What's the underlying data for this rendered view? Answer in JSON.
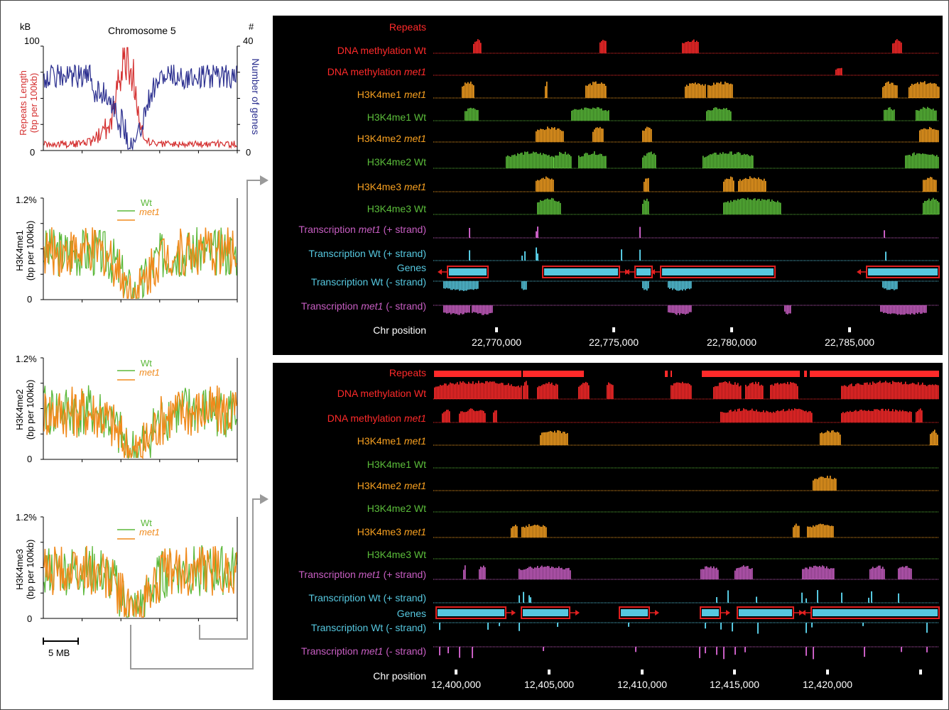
{
  "left": {
    "chart1": {
      "title": "Chromosome 5",
      "left_unit": "kB",
      "right_unit": "#",
      "left_ticks": [
        "100",
        "0"
      ],
      "right_ticks": [
        "40",
        "0"
      ],
      "ylabel_left_1": "Repeats Length",
      "ylabel_left_2": "(bp per 100kb)",
      "ylabel_right": "Number of genes",
      "colors": {
        "repeats": "#d42f2f",
        "genes": "#2b2f8f"
      }
    },
    "chart2": {
      "top": "1.2%",
      "bottom": "0",
      "ylabel_1": "H3K4me1",
      "ylabel_2": "(bp per 100kb)",
      "legend": [
        "Wt",
        "met1"
      ]
    },
    "chart3": {
      "top": "1.2%",
      "bottom": "0",
      "ylabel_1": "H3K4me2",
      "ylabel_2": "(bp per 100kb)",
      "legend": [
        "Wt",
        "met1"
      ]
    },
    "chart4": {
      "top": "1.2%",
      "bottom": "0",
      "ylabel_1": "H3K4me3",
      "ylabel_2": "(bp per 100kb)",
      "legend": [
        "Wt",
        "met1"
      ]
    },
    "scale_bar": "5 MB",
    "colors": {
      "wt": "#5bb83a",
      "met1": "#f08a1c"
    }
  },
  "browser_top": {
    "tracks": [
      {
        "a": "Repeats",
        "b": "",
        "c": "",
        "color": "#ff2a2a"
      },
      {
        "a": "DNA methylation Wt",
        "b": "",
        "c": "",
        "color": "#ff2a2a"
      },
      {
        "a": "DNA methylation ",
        "b": "met1",
        "c": "",
        "color": "#ff2a2a"
      },
      {
        "a": "H3K4me1 ",
        "b": "met1",
        "c": "",
        "color": "#f7a020"
      },
      {
        "a": "H3K4me1 Wt",
        "b": "",
        "c": "",
        "color": "#5bbd3a"
      },
      {
        "a": "H3K4me2 ",
        "b": "met1",
        "c": "",
        "color": "#f7a020"
      },
      {
        "a": "H3K4me2 Wt",
        "b": "",
        "c": "",
        "color": "#5bbd3a"
      },
      {
        "a": "H3K4me3 ",
        "b": "met1",
        "c": "",
        "color": "#f7a020"
      },
      {
        "a": "H3K4me3 Wt",
        "b": "",
        "c": "",
        "color": "#5bbd3a"
      },
      {
        "a": "Transcription ",
        "b": "met1",
        "c": " (+ strand)",
        "color": "#c85ec3"
      },
      {
        "a": "Transcription Wt (+ strand)",
        "b": "",
        "c": "",
        "color": "#56c8e0"
      },
      {
        "a": "Genes",
        "b": "",
        "c": "",
        "color": "#56c8e0"
      },
      {
        "a": "Transcription Wt (- strand)",
        "b": "",
        "c": "",
        "color": "#56c8e0"
      },
      {
        "a": "Transcription ",
        "b": "met1",
        "c": " (- strand)",
        "color": "#c85ec3"
      },
      {
        "a": "Chr position",
        "b": "",
        "c": "",
        "color": "#ffffff"
      }
    ],
    "positions": [
      "22,770,000",
      "22,775,000",
      "22,780,000",
      "22,785,000"
    ]
  },
  "browser_bottom": {
    "tracks": [
      {
        "a": "Repeats",
        "b": "",
        "c": "",
        "color": "#ff2a2a"
      },
      {
        "a": "DNA methylation Wt",
        "b": "",
        "c": "",
        "color": "#ff2a2a"
      },
      {
        "a": "DNA methylation ",
        "b": "met1",
        "c": "",
        "color": "#ff2a2a"
      },
      {
        "a": "H3K4me1 ",
        "b": "met1",
        "c": "",
        "color": "#f7a020"
      },
      {
        "a": "H3K4me1 Wt",
        "b": "",
        "c": "",
        "color": "#5bbd3a"
      },
      {
        "a": "H3K4me2 ",
        "b": "met1",
        "c": "",
        "color": "#f7a020"
      },
      {
        "a": "H3K4me2 Wt",
        "b": "",
        "c": "",
        "color": "#5bbd3a"
      },
      {
        "a": "H3K4me3 ",
        "b": "met1",
        "c": "",
        "color": "#f7a020"
      },
      {
        "a": "H3K4me3 Wt",
        "b": "",
        "c": "",
        "color": "#5bbd3a"
      },
      {
        "a": "Transcription ",
        "b": "met1",
        "c": " (+ strand)",
        "color": "#c85ec3"
      },
      {
        "a": "Transcription Wt (+ strand)",
        "b": "",
        "c": "",
        "color": "#56c8e0"
      },
      {
        "a": "Genes",
        "b": "",
        "c": "",
        "color": "#56c8e0"
      },
      {
        "a": "Transcription Wt (- strand)",
        "b": "",
        "c": "",
        "color": "#56c8e0"
      },
      {
        "a": "Transcription ",
        "b": "met1",
        "c": " (- strand)",
        "color": "#c85ec3"
      },
      {
        "a": "Chr position",
        "b": "",
        "c": "",
        "color": "#ffffff"
      }
    ],
    "positions": [
      "12,400,000",
      "12,405,000",
      "12,410,000",
      "12,415,000",
      "12,420,000"
    ]
  },
  "chart_data": [
    {
      "type": "line",
      "title": "Chromosome 5",
      "ylabel": "Repeats Length (bp per 100kb)",
      "y2label": "Number of genes",
      "ylim": [
        0,
        100
      ],
      "y2lim": [
        0,
        40
      ],
      "series": [
        {
          "name": "Repeats Length",
          "summary": "low ~5 kB, peaks ~100 kB near centromere"
        },
        {
          "name": "Number of genes",
          "summary": "~30 along arms, near 0 near centromere"
        }
      ]
    },
    {
      "type": "line",
      "ylabel": "H3K4me1 (bp per 100kb)",
      "ylim": [
        0,
        1.2
      ],
      "series": [
        {
          "name": "Wt"
        },
        {
          "name": "met1"
        }
      ]
    },
    {
      "type": "line",
      "ylabel": "H3K4me2 (bp per 100kb)",
      "ylim": [
        0,
        1.2
      ],
      "series": [
        {
          "name": "Wt"
        },
        {
          "name": "met1"
        }
      ]
    },
    {
      "type": "line",
      "ylabel": "H3K4me3 (bp per 100kb)",
      "ylim": [
        0,
        1.2
      ],
      "series": [
        {
          "name": "Wt"
        },
        {
          "name": "met1"
        }
      ]
    }
  ]
}
